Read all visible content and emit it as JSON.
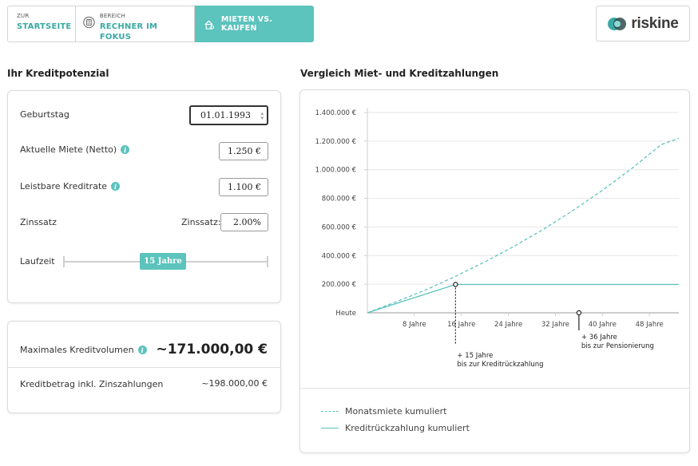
{
  "nav": {
    "home": {
      "small": "ZUR",
      "main": "STARTSEITE"
    },
    "focus": {
      "small": "BEREICH",
      "main": "RECHNER IM FOKUS",
      "icon": "calculator-icon"
    },
    "active": {
      "label": "MIETEN VS. KAUFEN",
      "icon": "key-house-icon"
    }
  },
  "logo": {
    "text": "riskine"
  },
  "left": {
    "title": "Ihr Kreditpotenzial",
    "birthday": {
      "label": "Geburtstag",
      "value": "01.01.1993"
    },
    "rent": {
      "label": "Aktuelle Miete (Netto)",
      "value": "1.250 €"
    },
    "rate": {
      "label": "Leistbare Kreditrate",
      "value": "1.100 €"
    },
    "interest": {
      "label": "Zinssatz",
      "inline_label": "Zinssatz:",
      "value": "2.00%"
    },
    "term": {
      "label": "Laufzeit",
      "value": "15 Jahre",
      "fraction": 0.37
    },
    "max_credit": {
      "label": "Maximales Kreditvolumen",
      "value": "~171.000,00 €"
    },
    "credit_total": {
      "label": "Kreditbetrag inkl. Zinszahlungen",
      "value": "~198.000,00 €"
    }
  },
  "right": {
    "title": "Vergleich Miet- und Kreditzahlungen",
    "annotation_credit": [
      "+ 15 Jahre",
      "bis zur Kreditrückzahlung"
    ],
    "annotation_pension": [
      "+ 36 Jahre",
      "bis zur Pensionierung"
    ]
  },
  "chart_data": {
    "type": "line",
    "colors": {
      "accent": "#5cc3bd"
    },
    "x_tick_labels": [
      "Heute",
      "8 Jahre",
      "16 Jahre",
      "24 Jahre",
      "32 Jahre",
      "40 Jahre",
      "48 Jahre"
    ],
    "x_ticks": [
      0,
      8,
      16,
      24,
      32,
      40,
      48
    ],
    "y_tick_labels": [
      "1.400.000 €",
      "1.200.000 €",
      "1.000.000 €",
      "800.000 €",
      "600.000 €",
      "400.000 €",
      "200.000 €"
    ],
    "y_ticks": [
      1400000,
      1200000,
      1000000,
      800000,
      600000,
      400000,
      200000
    ],
    "xlim": [
      0,
      53
    ],
    "ylim": [
      0,
      1400000
    ],
    "series": [
      {
        "name": "Monatsmiete kumuliert",
        "style": "dashed",
        "x": [
          0,
          5,
          10,
          15,
          20,
          25,
          30,
          35,
          40,
          45,
          50,
          53
        ],
        "y": [
          0,
          78000,
          162000,
          255000,
          356000,
          466000,
          585000,
          715000,
          856000,
          1009000,
          1175000,
          1220000
        ]
      },
      {
        "name": "Kreditrückzahlung kumuliert",
        "style": "solid",
        "x": [
          0,
          15,
          53
        ],
        "y": [
          0,
          198000,
          198000
        ]
      }
    ],
    "markers": [
      {
        "x": 15,
        "y": 198000
      },
      {
        "x": 36,
        "y": 0
      }
    ]
  }
}
